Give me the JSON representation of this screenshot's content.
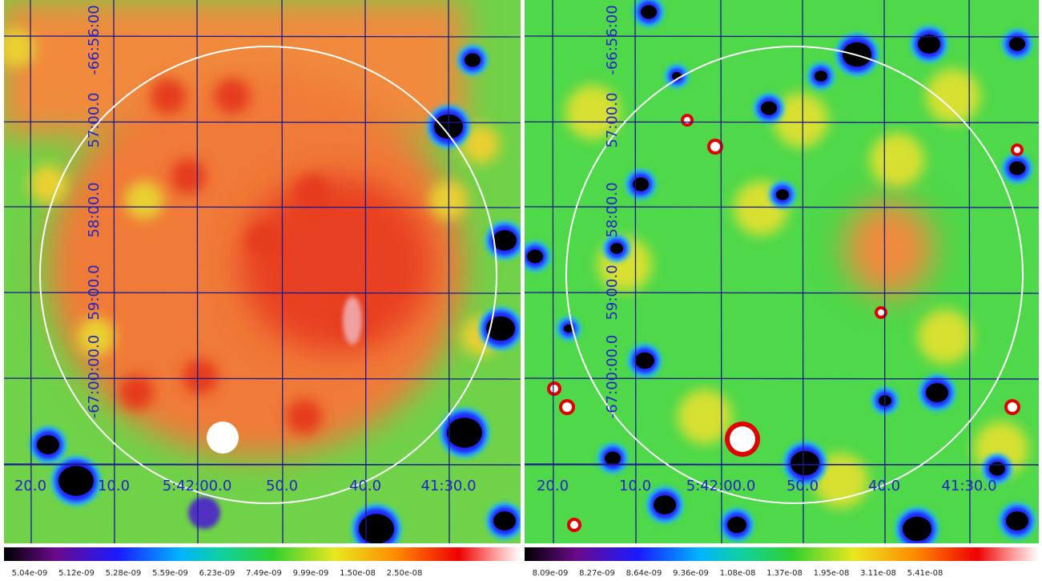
{
  "panels": [
    {
      "y_labels": [
        "-66:56:00",
        "57:00.0",
        "58:00.0",
        "59:00.0",
        "-67:00:00.0"
      ],
      "x_labels": [
        "20.0",
        "10.0",
        "5:42:00.0",
        "50.0",
        "40.0",
        "41:30.0"
      ],
      "colorbar_labels": [
        "5.04e-09",
        "5.12e-09",
        "5.28e-09",
        "5.59e-09",
        "6.23e-09",
        "7.49e-09",
        "9.99e-09",
        "1.50e-08",
        "2.50e-08"
      ]
    },
    {
      "y_labels": [
        "-66:56:00",
        "57:00.0",
        "58:00.0",
        "59:00.0",
        "-67:00:00.0"
      ],
      "x_labels": [
        "20.0",
        "10.0",
        "5:42:00.0",
        "50.0",
        "40.0",
        "41:30.0"
      ],
      "colorbar_labels": [
        "8.09e-09",
        "8.27e-09",
        "8.64e-09",
        "9.36e-09",
        "1.08e-08",
        "1.37e-08",
        "1.95e-08",
        "3.11e-08",
        "5.41e-08"
      ]
    }
  ]
}
